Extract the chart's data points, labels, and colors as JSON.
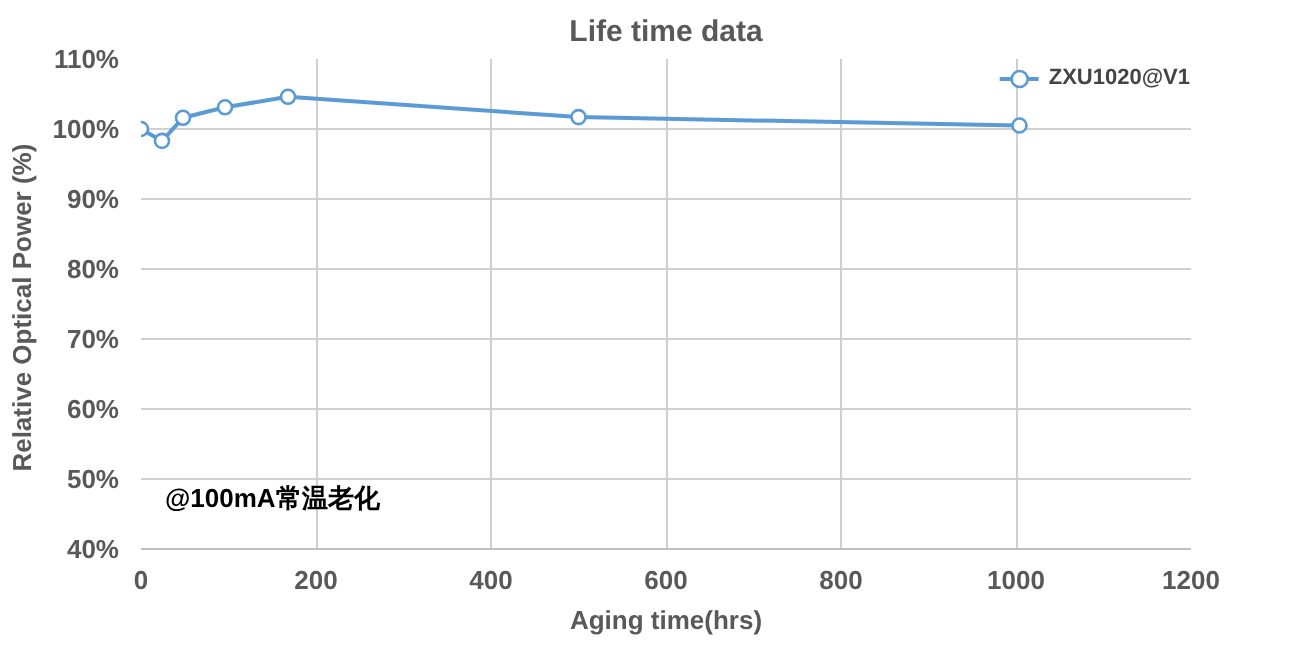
{
  "chart_data": {
    "type": "line",
    "title": "Life time data",
    "xlabel": "Aging time(hrs)",
    "ylabel": "Relative Optical Power  (%)",
    "x": [
      0,
      24,
      48,
      96,
      168,
      500,
      1004
    ],
    "series": [
      {
        "name": "ZXU1020@V1",
        "color": "#5b9bd5",
        "values": [
          100,
          98.3,
          101.6,
          103.1,
          104.6,
          101.7,
          100.5
        ]
      }
    ],
    "xlim": [
      0,
      1200
    ],
    "xticks": [
      0,
      200,
      400,
      600,
      800,
      1000,
      1200
    ],
    "ylim": [
      40,
      110
    ],
    "yticks": [
      {
        "value": 40,
        "label": "40%"
      },
      {
        "value": 50,
        "label": "50%"
      },
      {
        "value": 60,
        "label": "60%"
      },
      {
        "value": 70,
        "label": "70%"
      },
      {
        "value": 80,
        "label": "80%"
      },
      {
        "value": 90,
        "label": "90%"
      },
      {
        "value": 100,
        "label": "100%"
      },
      {
        "value": 110,
        "label": "110%"
      }
    ],
    "grid": true,
    "legend": "top right",
    "marker": "circle",
    "line_style": "solid",
    "annotations": [
      "@100mA常温老化"
    ]
  }
}
